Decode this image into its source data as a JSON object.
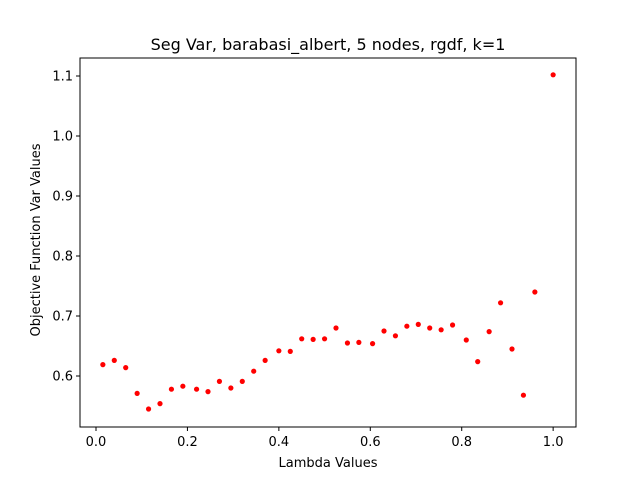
{
  "chart_data": {
    "type": "scatter",
    "title": "Seg Var, barabasi_albert, 5 nodes, rgdf, k=1",
    "xlabel": "Lambda Values",
    "ylabel": "Objective Function Var Values",
    "xlim": [
      -0.035,
      1.05
    ],
    "ylim": [
      0.515,
      1.13
    ],
    "xticks": [
      0.0,
      0.2,
      0.4,
      0.6,
      0.8,
      1.0
    ],
    "xtick_labels": [
      "0.0",
      "0.2",
      "0.4",
      "0.6",
      "0.8",
      "1.0"
    ],
    "yticks": [
      0.6,
      0.7,
      0.8,
      0.9,
      1.0,
      1.1
    ],
    "ytick_labels": [
      "0.6",
      "0.7",
      "0.8",
      "0.9",
      "1.0",
      "1.1"
    ],
    "grid": false,
    "marker_color": "#ff0000",
    "points": [
      {
        "x": 0.015,
        "y": 0.619
      },
      {
        "x": 0.04,
        "y": 0.626
      },
      {
        "x": 0.065,
        "y": 0.614
      },
      {
        "x": 0.09,
        "y": 0.571
      },
      {
        "x": 0.115,
        "y": 0.545
      },
      {
        "x": 0.14,
        "y": 0.554
      },
      {
        "x": 0.165,
        "y": 0.578
      },
      {
        "x": 0.19,
        "y": 0.583
      },
      {
        "x": 0.22,
        "y": 0.578
      },
      {
        "x": 0.245,
        "y": 0.574
      },
      {
        "x": 0.27,
        "y": 0.591
      },
      {
        "x": 0.295,
        "y": 0.58
      },
      {
        "x": 0.32,
        "y": 0.591
      },
      {
        "x": 0.345,
        "y": 0.608
      },
      {
        "x": 0.37,
        "y": 0.626
      },
      {
        "x": 0.4,
        "y": 0.642
      },
      {
        "x": 0.425,
        "y": 0.641
      },
      {
        "x": 0.45,
        "y": 0.662
      },
      {
        "x": 0.475,
        "y": 0.661
      },
      {
        "x": 0.5,
        "y": 0.662
      },
      {
        "x": 0.525,
        "y": 0.68
      },
      {
        "x": 0.55,
        "y": 0.655
      },
      {
        "x": 0.575,
        "y": 0.656
      },
      {
        "x": 0.605,
        "y": 0.654
      },
      {
        "x": 0.63,
        "y": 0.675
      },
      {
        "x": 0.655,
        "y": 0.667
      },
      {
        "x": 0.68,
        "y": 0.683
      },
      {
        "x": 0.705,
        "y": 0.686
      },
      {
        "x": 0.73,
        "y": 0.68
      },
      {
        "x": 0.755,
        "y": 0.677
      },
      {
        "x": 0.78,
        "y": 0.685
      },
      {
        "x": 0.81,
        "y": 0.66
      },
      {
        "x": 0.835,
        "y": 0.624
      },
      {
        "x": 0.86,
        "y": 0.674
      },
      {
        "x": 0.885,
        "y": 0.722
      },
      {
        "x": 0.91,
        "y": 0.645
      },
      {
        "x": 0.935,
        "y": 0.568
      },
      {
        "x": 0.96,
        "y": 0.74
      },
      {
        "x": 1.0,
        "y": 1.102
      }
    ]
  }
}
